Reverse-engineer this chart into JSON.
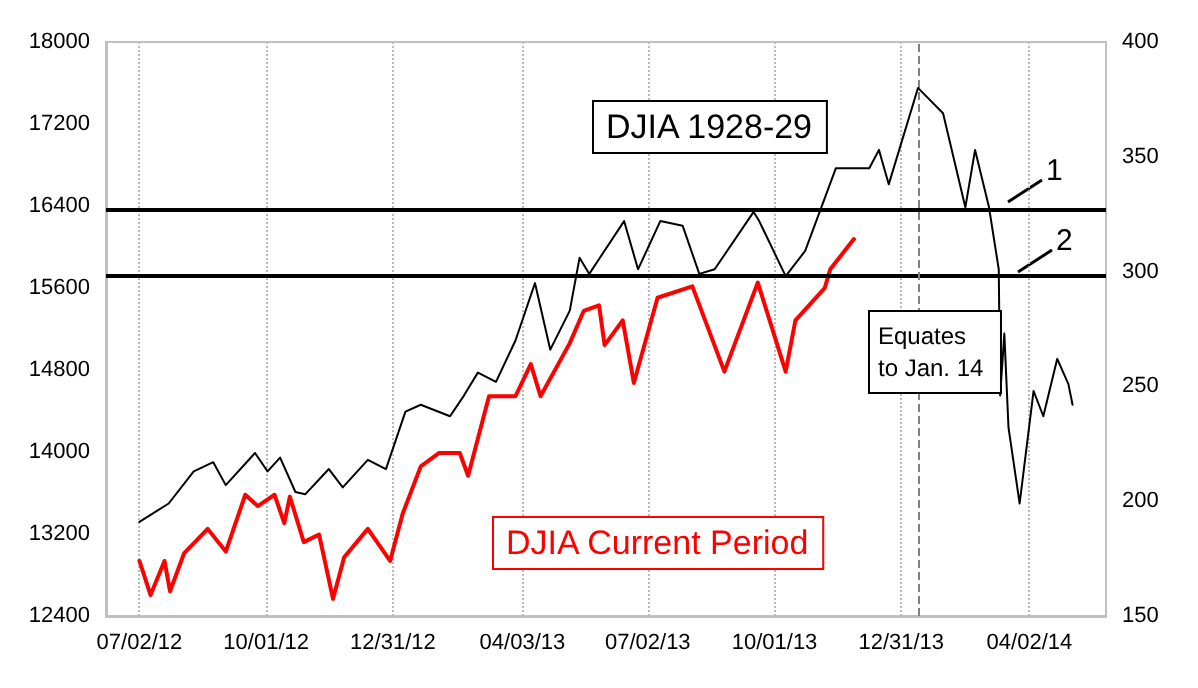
{
  "chart_data": {
    "type": "line",
    "xlim": [
      "2012-06-08",
      "2014-05-27"
    ],
    "xticks": [
      {
        "value": "2012-07-02",
        "label": "07/02/12"
      },
      {
        "value": "2012-10-01",
        "label": "10/01/12"
      },
      {
        "value": "2012-12-31",
        "label": "12/31/12"
      },
      {
        "value": "2013-04-03",
        "label": "04/03/13"
      },
      {
        "value": "2013-07-02",
        "label": "07/02/13"
      },
      {
        "value": "2013-10-01",
        "label": "10/01/13"
      },
      {
        "value": "2013-12-31",
        "label": "12/31/13"
      },
      {
        "value": "2014-04-02",
        "label": "04/02/14"
      }
    ],
    "ylim": [
      12400,
      18000
    ],
    "yticks": [
      12400,
      13200,
      14000,
      14800,
      15600,
      16400,
      17200,
      18000
    ],
    "y2lim": [
      150,
      400
    ],
    "y2ticks": [
      150,
      200,
      250,
      300,
      350,
      400
    ],
    "grid": "x",
    "legend": false,
    "marker": "none",
    "line_style": "solid",
    "series": [
      {
        "name": "DJIA 1928-29",
        "color": "#000000",
        "axis": "y2",
        "x": [
          "2012-07-02",
          "2012-07-23",
          "2012-08-10",
          "2012-08-24",
          "2012-09-02",
          "2012-09-23",
          "2012-10-02",
          "2012-10-11",
          "2012-10-22",
          "2012-10-29",
          "2012-11-15",
          "2012-11-25",
          "2012-12-13",
          "2012-12-26",
          "2013-01-09",
          "2013-01-20",
          "2013-02-10",
          "2013-02-20",
          "2013-03-02",
          "2013-03-15",
          "2013-03-29",
          "2013-04-12",
          "2013-04-23",
          "2013-05-07",
          "2013-05-14",
          "2013-05-21",
          "2013-06-15",
          "2013-06-25",
          "2013-07-11",
          "2013-07-27",
          "2013-08-08",
          "2013-08-19",
          "2013-09-16",
          "2013-09-20",
          "2013-10-09",
          "2013-10-23",
          "2013-11-14",
          "2013-12-08",
          "2013-12-15",
          "2013-12-22",
          "2014-01-12",
          "2014-01-30",
          "2014-02-15",
          "2014-02-22",
          "2014-03-04",
          "2014-03-11",
          "2014-03-12",
          "2014-03-15",
          "2014-03-18",
          "2014-03-26",
          "2014-04-05",
          "2014-04-12",
          "2014-04-22",
          "2014-04-30",
          "2014-05-03"
        ],
        "values": [
          191,
          199,
          213,
          217,
          207,
          221,
          213,
          219,
          204,
          203,
          214,
          206,
          218,
          214,
          239,
          242,
          237,
          246,
          256,
          252,
          270,
          295,
          266,
          283,
          306,
          299,
          322,
          301,
          322,
          320,
          299,
          301,
          326,
          322,
          298,
          309,
          345,
          345,
          353,
          338,
          380,
          369,
          328,
          353,
          328,
          301,
          246,
          273,
          232,
          199,
          248,
          237,
          262,
          251,
          242
        ]
      },
      {
        "name": "DJIA Current Period",
        "color": "#ff0000",
        "x": [
          "2012-07-02",
          "2012-07-10",
          "2012-07-20",
          "2012-07-24",
          "2012-08-03",
          "2012-08-20",
          "2012-09-02",
          "2012-09-16",
          "2012-09-25",
          "2012-10-07",
          "2012-10-14",
          "2012-10-18",
          "2012-10-28",
          "2012-11-08",
          "2012-11-18",
          "2012-11-26",
          "2012-12-13",
          "2012-12-29",
          "2013-01-07",
          "2013-01-20",
          "2013-02-02",
          "2013-02-17",
          "2013-02-23",
          "2013-03-10",
          "2013-03-29",
          "2013-04-09",
          "2013-04-16",
          "2013-05-07",
          "2013-05-17",
          "2013-05-28",
          "2013-06-01",
          "2013-06-14",
          "2013-06-22",
          "2013-07-09",
          "2013-08-03",
          "2013-08-26",
          "2013-09-19",
          "2013-10-09",
          "2013-10-16",
          "2013-11-06",
          "2013-11-10",
          "2013-11-27"
        ],
        "values": [
          12937,
          12604,
          12937,
          12641,
          13010,
          13250,
          13029,
          13583,
          13472,
          13583,
          13306,
          13565,
          13121,
          13195,
          12567,
          12974,
          13250,
          12937,
          13398,
          13860,
          13990,
          13990,
          13768,
          14544,
          14544,
          14858,
          14544,
          15062,
          15376,
          15431,
          15043,
          15284,
          14674,
          15505,
          15616,
          14784,
          15653,
          14784,
          15284,
          15598,
          15782,
          16078
        ]
      }
    ],
    "ref_lines": [
      {
        "axis": "y2",
        "value": 327,
        "color": "#000000"
      },
      {
        "axis": "y2",
        "value": 298,
        "color": "#000000"
      },
      {
        "axis": "x",
        "value": "2014-01-12",
        "label": "Equates to Jan. 14",
        "color": "#808080",
        "line_style": "dashed"
      }
    ],
    "annotations": [
      "1",
      "2"
    ]
  }
}
